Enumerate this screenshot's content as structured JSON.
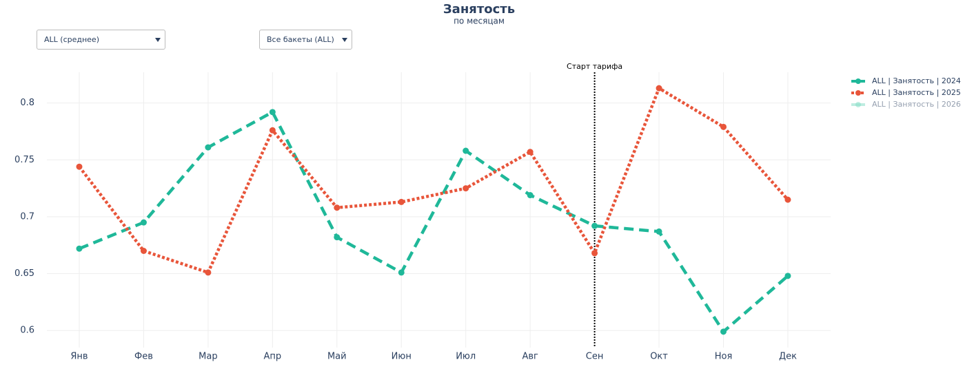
{
  "chart_data": {
    "type": "line",
    "title": "Занятость",
    "subtitle": "по месяцам",
    "controls": [
      "ALL (среднее)",
      "Все бакеты (ALL)"
    ],
    "categories": [
      "Янв",
      "Фев",
      "Мар",
      "Апр",
      "Май",
      "Июн",
      "Июл",
      "Авг",
      "Сен",
      "Окт",
      "Ноя",
      "Дек"
    ],
    "series": [
      {
        "name": "ALL | Занятость | 2024",
        "color": "#1fb899",
        "dash": "dash",
        "visible": true,
        "values": [
          0.672,
          0.695,
          0.761,
          0.792,
          0.682,
          0.651,
          0.758,
          0.719,
          0.692,
          0.687,
          0.599,
          0.648
        ]
      },
      {
        "name": "ALL | Занятость | 2025",
        "color": "#e8553a",
        "dash": "dot",
        "visible": true,
        "values": [
          0.744,
          0.67,
          0.651,
          0.776,
          0.708,
          0.713,
          0.725,
          0.757,
          0.668,
          0.813,
          0.779,
          0.715
        ]
      },
      {
        "name": "ALL | Занятость | 2026",
        "color": "#7fdcc4",
        "dash": "solid",
        "visible": false,
        "values": [
          null,
          null,
          null,
          null,
          null,
          null,
          null,
          null,
          null,
          null,
          null,
          null
        ]
      }
    ],
    "vline": {
      "x": "Сен",
      "label": "Старт тарифа"
    },
    "ylim": [
      0.585,
      0.827
    ],
    "yticks": [
      0.6,
      0.65,
      0.7,
      0.75,
      0.8
    ],
    "grid": true,
    "legend": "right"
  }
}
